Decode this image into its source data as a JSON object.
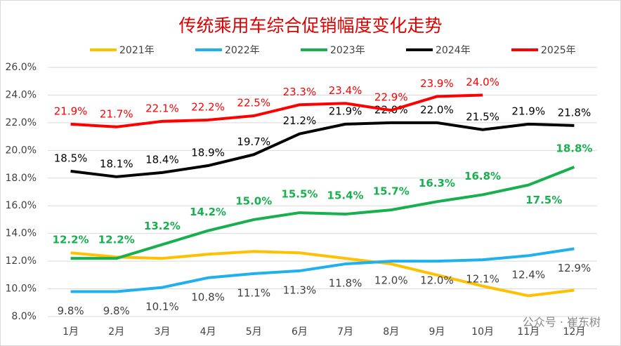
{
  "chart_data": {
    "type": "line",
    "title": "传统乘用车综合促销幅度变化走势",
    "categories": [
      "1月",
      "2月",
      "3月",
      "4月",
      "5月",
      "6月",
      "7月",
      "8月",
      "9月",
      "10月",
      "11月",
      "12月"
    ],
    "ylim": [
      8,
      26
    ],
    "yticks": [
      {
        "value": 8,
        "label": "8.0%"
      },
      {
        "value": 10,
        "label": "10.0%"
      },
      {
        "value": 12,
        "label": "12.0%"
      },
      {
        "value": 14,
        "label": "14.0%"
      },
      {
        "value": 16,
        "label": "16.0%"
      },
      {
        "value": 18,
        "label": "18.0%"
      },
      {
        "value": 20,
        "label": "20.0%"
      },
      {
        "value": 22,
        "label": "22.0%"
      },
      {
        "value": 24,
        "label": "24.0%"
      },
      {
        "value": 26,
        "label": "26.0%"
      }
    ],
    "grid": true,
    "legend": "top",
    "watermark": "公众号 · 崔东树",
    "series": [
      {
        "name": "2021年",
        "color": "#ffc000",
        "values": [
          12.6,
          12.3,
          12.2,
          12.5,
          12.7,
          12.6,
          12.2,
          11.8,
          11.0,
          10.2,
          9.5,
          9.9
        ]
      },
      {
        "name": "2022年",
        "color": "#1fb0ee",
        "values": [
          9.8,
          9.8,
          10.1,
          10.8,
          11.1,
          11.3,
          11.8,
          12.0,
          12.0,
          12.1,
          12.4,
          12.9
        ],
        "value_labels": [
          "9.8%",
          "9.8%",
          "10.1%",
          "10.8%",
          "11.1%",
          "11.3%",
          "11.8%",
          "12.0%",
          "12.0%",
          "12.1%",
          "12.4%",
          "12.9%"
        ]
      },
      {
        "name": "2023年",
        "color": "#18b04e",
        "values": [
          12.2,
          12.2,
          13.2,
          14.2,
          15.0,
          15.5,
          15.4,
          15.7,
          16.3,
          16.8,
          17.5,
          18.8
        ],
        "value_labels": [
          "12.2%",
          "12.2%",
          "13.2%",
          "14.2%",
          "15.0%",
          "15.5%",
          "15.4%",
          "15.7%",
          "16.3%",
          "16.8%",
          "17.5%",
          "18.8%"
        ]
      },
      {
        "name": "2024年",
        "color": "#000000",
        "values": [
          18.5,
          18.1,
          18.4,
          18.9,
          19.7,
          21.2,
          21.9,
          22.0,
          22.0,
          21.5,
          21.9,
          21.8
        ],
        "value_labels": [
          "18.5%",
          "18.1%",
          "18.4%",
          "18.9%",
          "19.7%",
          "21.2%",
          "21.9%",
          "22.0%",
          "22.0%",
          "21.5%",
          "21.9%",
          "21.8%"
        ]
      },
      {
        "name": "2025年",
        "color": "#ff0000",
        "values": [
          21.9,
          21.7,
          22.1,
          22.2,
          22.5,
          23.3,
          23.4,
          22.9,
          23.9,
          24.0,
          null,
          null
        ],
        "value_labels": [
          "21.9%",
          "21.7%",
          "22.1%",
          "22.2%",
          "22.5%",
          "23.3%",
          "23.4%",
          "22.9%",
          "23.9%",
          "24.0%",
          null,
          null
        ]
      }
    ]
  }
}
